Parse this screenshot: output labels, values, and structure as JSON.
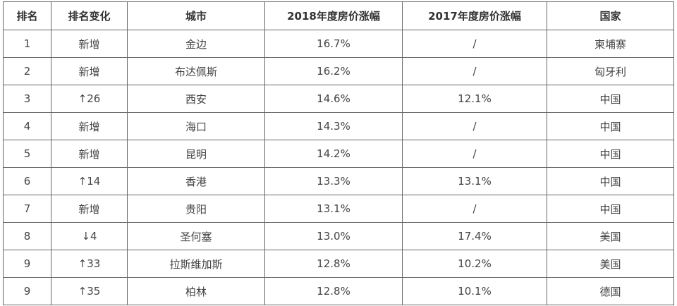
{
  "table": {
    "header": [
      "排名",
      "排名变化",
      "城市",
      "2018年度房价涨幅",
      "2017年度房价涨幅",
      "国家"
    ],
    "rows": [
      [
        "1",
        "新增",
        "金边",
        "16.7%",
        "/",
        "柬埔寨"
      ],
      [
        "2",
        "新增",
        "布达佩斯",
        "16.2%",
        "/",
        "匈牙利"
      ],
      [
        "3",
        "↑26",
        "西安",
        "14.6%",
        "12.1%",
        "中国"
      ],
      [
        "4",
        "新增",
        "海口",
        "14.3%",
        "/",
        "中国"
      ],
      [
        "5",
        "新增",
        "昆明",
        "14.2%",
        "/",
        "中国"
      ],
      [
        "6",
        "↑14",
        "香港",
        "13.3%",
        "13.1%",
        "中国"
      ],
      [
        "7",
        "新增",
        "贵阳",
        "13.1%",
        "/",
        "中国"
      ],
      [
        "8",
        "↓4",
        "圣何塞",
        "13.0%",
        "17.4%",
        "美国"
      ],
      [
        "9",
        "↑33",
        "拉斯维加斯",
        "12.8%",
        "10.2%",
        "美国"
      ],
      [
        "9",
        "↑35",
        "柏林",
        "12.8%",
        "10.1%",
        "德国"
      ]
    ]
  }
}
